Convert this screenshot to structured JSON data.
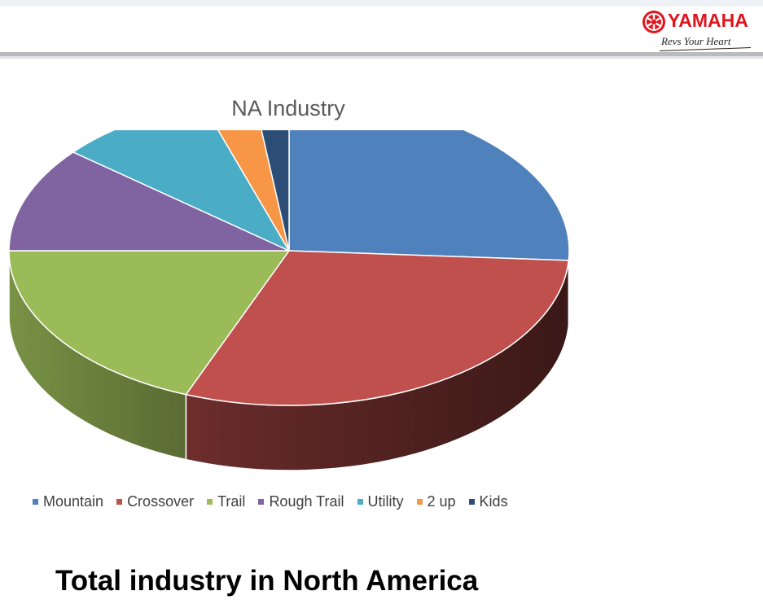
{
  "header": {
    "logo_text": "YAMAHA",
    "tagline": "Revs Your Heart",
    "brand_color": "#e1141d"
  },
  "chart_data": {
    "type": "pie",
    "title": "NA Industry",
    "style": "3d",
    "legend_position": "bottom",
    "categories": [
      "Mountain",
      "Crossover",
      "Trail",
      "Rough Trail",
      "Utility",
      "2 up",
      "Kids"
    ],
    "values": [
      26,
      30,
      19,
      11,
      9,
      3,
      2
    ],
    "colors": [
      "#4f81bd",
      "#c0504d",
      "#9bbb59",
      "#8064a2",
      "#4bacc6",
      "#f79646",
      "#2c4d75"
    ]
  },
  "footer": {
    "title": "Total industry in North America"
  }
}
